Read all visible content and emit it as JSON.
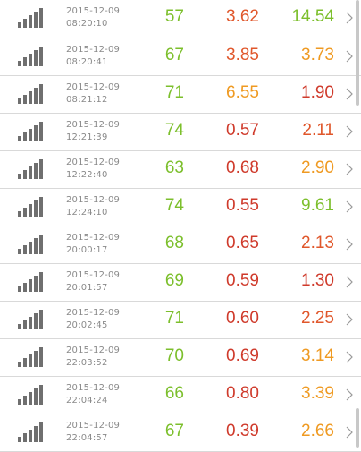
{
  "colors": {
    "green": "#7cbf2c",
    "red": "#cf3a2b",
    "orange": "#ef9a22"
  },
  "rows": [
    {
      "date": "2015-12-09",
      "time": "08:20:10",
      "v1": "57",
      "v2": "3.62",
      "v3": "14.54",
      "v2_color": "#e0572b",
      "v3_color": "#7cbf2c"
    },
    {
      "date": "2015-12-09",
      "time": "08:20:41",
      "v1": "67",
      "v2": "3.85",
      "v3": "3.73",
      "v2_color": "#e0572b",
      "v3_color": "#ef9a22"
    },
    {
      "date": "2015-12-09",
      "time": "08:21:12",
      "v1": "71",
      "v2": "6.55",
      "v3": "1.90",
      "v2_color": "#ef9a22",
      "v3_color": "#cf3a2b"
    },
    {
      "date": "2015-12-09",
      "time": "12:21:39",
      "v1": "74",
      "v2": "0.57",
      "v3": "2.11",
      "v2_color": "#cf3a2b",
      "v3_color": "#e0572b"
    },
    {
      "date": "2015-12-09",
      "time": "12:22:40",
      "v1": "63",
      "v2": "0.68",
      "v3": "2.90",
      "v2_color": "#cf3a2b",
      "v3_color": "#ef9a22"
    },
    {
      "date": "2015-12-09",
      "time": "12:24:10",
      "v1": "74",
      "v2": "0.55",
      "v3": "9.61",
      "v2_color": "#cf3a2b",
      "v3_color": "#7cbf2c"
    },
    {
      "date": "2015-12-09",
      "time": "20:00:17",
      "v1": "68",
      "v2": "0.65",
      "v3": "2.13",
      "v2_color": "#cf3a2b",
      "v3_color": "#e0572b"
    },
    {
      "date": "2015-12-09",
      "time": "20:01:57",
      "v1": "69",
      "v2": "0.59",
      "v3": "1.30",
      "v2_color": "#cf3a2b",
      "v3_color": "#cf3a2b"
    },
    {
      "date": "2015-12-09",
      "time": "20:02:45",
      "v1": "71",
      "v2": "0.60",
      "v3": "2.25",
      "v2_color": "#cf3a2b",
      "v3_color": "#e0572b"
    },
    {
      "date": "2015-12-09",
      "time": "22:03:52",
      "v1": "70",
      "v2": "0.69",
      "v3": "3.14",
      "v2_color": "#cf3a2b",
      "v3_color": "#ef9a22"
    },
    {
      "date": "2015-12-09",
      "time": "22:04:24",
      "v1": "66",
      "v2": "0.80",
      "v3": "3.39",
      "v2_color": "#cf3a2b",
      "v3_color": "#ef9a22"
    },
    {
      "date": "2015-12-09",
      "time": "22:04:57",
      "v1": "67",
      "v2": "0.39",
      "v3": "2.66",
      "v2_color": "#cf3a2b",
      "v3_color": "#ef9a22"
    }
  ]
}
